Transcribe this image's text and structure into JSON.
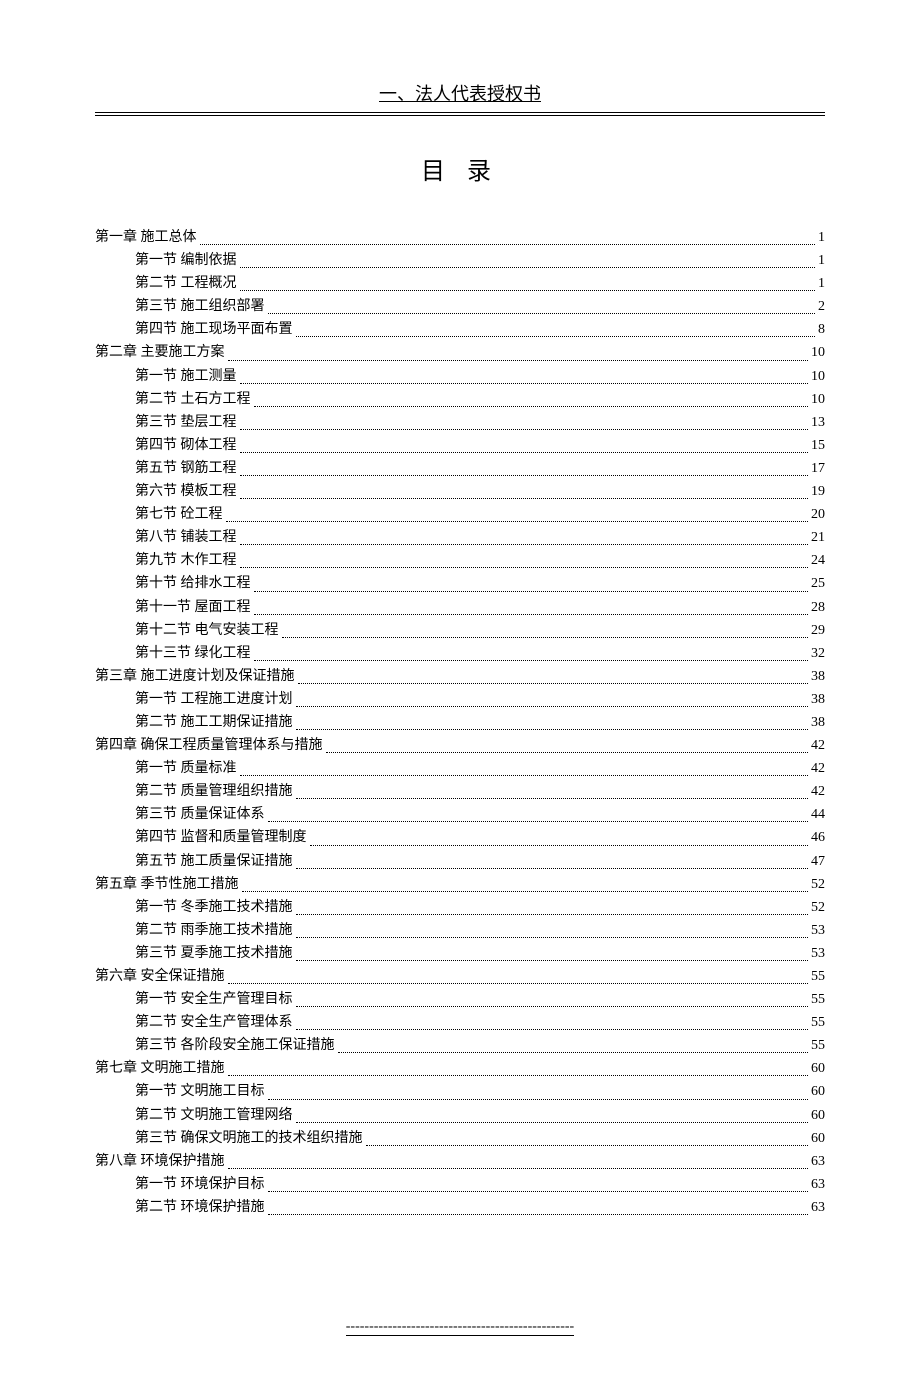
{
  "header": "一、法人代表授权书",
  "title": "目 录",
  "footer": "-------------------------------------------------",
  "toc": [
    {
      "level": 0,
      "label": "第一章 施工总体",
      "page": "1"
    },
    {
      "level": 1,
      "label": "第一节  编制依据",
      "page": "1"
    },
    {
      "level": 1,
      "label": "第二节  工程概况",
      "page": "1"
    },
    {
      "level": 1,
      "label": "第三节 施工组织部署",
      "page": "2"
    },
    {
      "level": 1,
      "label": "第四节 施工现场平面布置",
      "page": "8"
    },
    {
      "level": 0,
      "label": "第二章 主要施工方案",
      "page": "10"
    },
    {
      "level": 1,
      "label": "第一节  施工测量",
      "page": "10"
    },
    {
      "level": 1,
      "label": "第二节 土石方工程",
      "page": "10"
    },
    {
      "level": 1,
      "label": "第三节 垫层工程",
      "page": "13"
    },
    {
      "level": 1,
      "label": "第四节 砌体工程",
      "page": "15"
    },
    {
      "level": 1,
      "label": "第五节 钢筋工程",
      "page": "17"
    },
    {
      "level": 1,
      "label": "第六节 模板工程",
      "page": "19"
    },
    {
      "level": 1,
      "label": "第七节 砼工程",
      "page": "20"
    },
    {
      "level": 1,
      "label": "第八节 铺装工程",
      "page": "21"
    },
    {
      "level": 1,
      "label": "第九节 木作工程",
      "page": "24"
    },
    {
      "level": 1,
      "label": "第十节 给排水工程",
      "page": "25"
    },
    {
      "level": 1,
      "label": "第十一节 屋面工程",
      "page": "28"
    },
    {
      "level": 1,
      "label": "第十二节  电气安装工程",
      "page": "29"
    },
    {
      "level": 1,
      "label": "第十三节 绿化工程",
      "page": "32"
    },
    {
      "level": 0,
      "label": "第三章 施工进度计划及保证措施",
      "page": "38"
    },
    {
      "level": 1,
      "label": "第一节 工程施工进度计划",
      "page": "38"
    },
    {
      "level": 1,
      "label": "第二节 施工工期保证措施",
      "page": "38"
    },
    {
      "level": 0,
      "label": "第四章 确保工程质量管理体系与措施",
      "page": "42"
    },
    {
      "level": 1,
      "label": "第一节 质量标准",
      "page": "42"
    },
    {
      "level": 1,
      "label": "第二节 质量管理组织措施",
      "page": "42"
    },
    {
      "level": 1,
      "label": "第三节 质量保证体系",
      "page": "44"
    },
    {
      "level": 1,
      "label": "第四节  监督和质量管理制度",
      "page": "46"
    },
    {
      "level": 1,
      "label": "第五节 施工质量保证措施",
      "page": "47"
    },
    {
      "level": 0,
      "label": "第五章 季节性施工措施",
      "page": "52"
    },
    {
      "level": 1,
      "label": "第一节 冬季施工技术措施",
      "page": "52"
    },
    {
      "level": 1,
      "label": "第二节 雨季施工技术措施",
      "page": "53"
    },
    {
      "level": 1,
      "label": "第三节 夏季施工技术措施",
      "page": "53"
    },
    {
      "level": 0,
      "label": "第六章 安全保证措施",
      "page": "55"
    },
    {
      "level": 1,
      "label": "第一节 安全生产管理目标",
      "page": "55"
    },
    {
      "level": 1,
      "label": "第二节 安全生产管理体系",
      "page": "55"
    },
    {
      "level": 1,
      "label": "第三节 各阶段安全施工保证措施",
      "page": "55"
    },
    {
      "level": 0,
      "label": "第七章 文明施工措施",
      "page": "60"
    },
    {
      "level": 1,
      "label": "第一节 文明施工目标",
      "page": "60"
    },
    {
      "level": 1,
      "label": "第二节 文明施工管理网络",
      "page": "60"
    },
    {
      "level": 1,
      "label": "第三节 确保文明施工的技术组织措施",
      "page": "60"
    },
    {
      "level": 0,
      "label": "第八章 环境保护措施",
      "page": "63"
    },
    {
      "level": 1,
      "label": "第一节 环境保护目标",
      "page": "63"
    },
    {
      "level": 1,
      "label": "第二节 环境保护措施",
      "page": "63"
    }
  ]
}
